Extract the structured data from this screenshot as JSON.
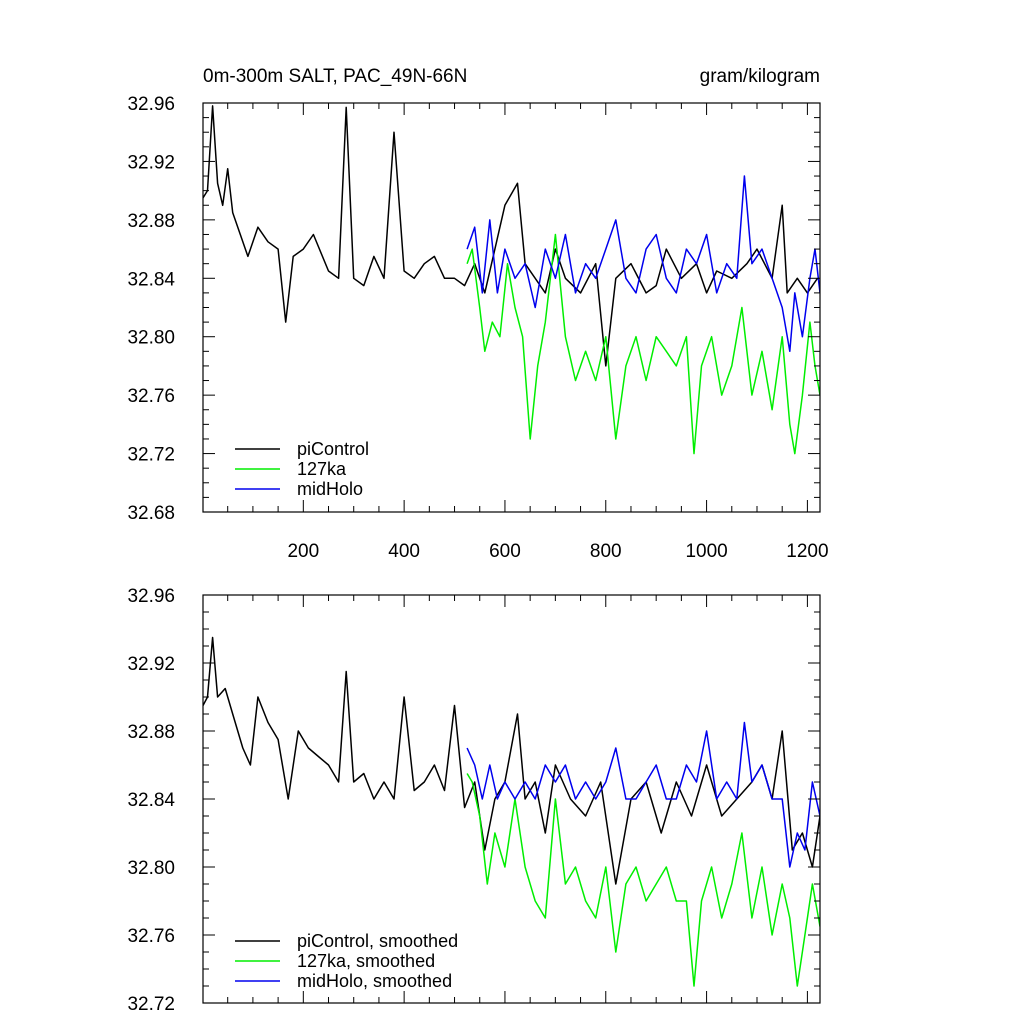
{
  "figure": {
    "title_left": "0m-300m SALT, PAC_49N-66N",
    "title_right": "gram/kilogram"
  },
  "chart_data": [
    {
      "type": "line",
      "title": "0m-300m SALT, PAC_49N-66N",
      "units": "gram/kilogram",
      "xlim": [
        1,
        1225
      ],
      "ylim": [
        32.68,
        32.96
      ],
      "x_ticks": [
        200,
        400,
        600,
        800,
        1000,
        1200
      ],
      "x_tick_labels": [
        "200",
        "400",
        "600",
        "800",
        "1000",
        "1200"
      ],
      "y_ticks": [
        32.68,
        32.72,
        32.76,
        32.8,
        32.84,
        32.88,
        32.92,
        32.96
      ],
      "y_tick_labels": [
        "32.68",
        "32.72",
        "32.76",
        "32.80",
        "32.84",
        "32.88",
        "32.92",
        "32.96"
      ],
      "legend_position": "bottom-left",
      "series": [
        {
          "name": "piControl",
          "color": "#000000",
          "x": [
            1,
            10,
            20,
            30,
            40,
            50,
            60,
            75,
            90,
            110,
            130,
            150,
            165,
            180,
            200,
            220,
            250,
            270,
            285,
            300,
            320,
            340,
            360,
            380,
            400,
            420,
            440,
            460,
            480,
            500,
            520,
            540,
            560,
            580,
            600,
            625,
            640,
            660,
            680,
            700,
            720,
            750,
            780,
            800,
            820,
            850,
            880,
            900,
            920,
            950,
            980,
            1000,
            1020,
            1050,
            1080,
            1100,
            1130,
            1150,
            1160,
            1180,
            1200,
            1220
          ],
          "y": [
            32.895,
            32.9,
            32.958,
            32.905,
            32.89,
            32.915,
            32.885,
            32.87,
            32.855,
            32.875,
            32.865,
            32.86,
            32.81,
            32.855,
            32.86,
            32.87,
            32.845,
            32.84,
            32.957,
            32.84,
            32.835,
            32.855,
            32.84,
            32.94,
            32.845,
            32.84,
            32.85,
            32.855,
            32.84,
            32.84,
            32.835,
            32.85,
            32.83,
            32.86,
            32.89,
            32.905,
            32.85,
            32.84,
            32.83,
            32.86,
            32.84,
            32.83,
            32.85,
            32.78,
            32.84,
            32.85,
            32.83,
            32.835,
            32.86,
            32.84,
            32.85,
            32.83,
            32.845,
            32.84,
            32.85,
            32.86,
            32.84,
            32.89,
            32.83,
            32.84,
            32.83,
            32.84
          ]
        },
        {
          "name": "127ka",
          "color": "#00ee00",
          "x": [
            525,
            535,
            550,
            560,
            575,
            590,
            605,
            620,
            635,
            650,
            665,
            680,
            700,
            720,
            740,
            760,
            780,
            800,
            820,
            840,
            860,
            880,
            900,
            920,
            940,
            960,
            975,
            990,
            1010,
            1030,
            1050,
            1070,
            1090,
            1110,
            1130,
            1150,
            1165,
            1175,
            1190,
            1205,
            1215,
            1225
          ],
          "y": [
            32.85,
            32.86,
            32.82,
            32.79,
            32.81,
            32.8,
            32.85,
            32.82,
            32.8,
            32.73,
            32.78,
            32.81,
            32.87,
            32.8,
            32.77,
            32.79,
            32.77,
            32.8,
            32.73,
            32.78,
            32.8,
            32.77,
            32.8,
            32.79,
            32.78,
            32.8,
            32.72,
            32.78,
            32.8,
            32.76,
            32.78,
            32.82,
            32.76,
            32.79,
            32.75,
            32.8,
            32.74,
            32.72,
            32.76,
            32.81,
            32.78,
            32.76
          ]
        },
        {
          "name": "midHolo",
          "color": "#0000ee",
          "x": [
            525,
            540,
            555,
            570,
            585,
            600,
            620,
            640,
            660,
            680,
            700,
            720,
            740,
            760,
            780,
            800,
            820,
            840,
            860,
            880,
            900,
            920,
            940,
            960,
            980,
            1000,
            1020,
            1040,
            1060,
            1075,
            1090,
            1110,
            1130,
            1150,
            1165,
            1175,
            1190,
            1205,
            1215,
            1225
          ],
          "y": [
            32.86,
            32.875,
            32.83,
            32.88,
            32.83,
            32.86,
            32.84,
            32.85,
            32.82,
            32.86,
            32.84,
            32.87,
            32.83,
            32.85,
            32.84,
            32.86,
            32.88,
            32.84,
            32.83,
            32.86,
            32.87,
            32.84,
            32.83,
            32.86,
            32.85,
            32.87,
            32.83,
            32.85,
            32.84,
            32.91,
            32.85,
            32.86,
            32.84,
            32.82,
            32.79,
            32.83,
            32.8,
            32.84,
            32.86,
            32.83
          ]
        }
      ]
    },
    {
      "type": "line",
      "xlim": [
        1,
        1225
      ],
      "ylim": [
        32.72,
        32.96
      ],
      "x_ticks": [
        200,
        400,
        600,
        800,
        1000,
        1200
      ],
      "y_ticks": [
        32.72,
        32.76,
        32.8,
        32.84,
        32.88,
        32.92,
        32.96
      ],
      "y_tick_labels": [
        "32.72",
        "32.76",
        "32.80",
        "32.84",
        "32.88",
        "32.92",
        "32.96"
      ],
      "legend_position": "bottom-left",
      "series": [
        {
          "name": "piControl, smoothed",
          "color": "#000000",
          "x": [
            1,
            10,
            20,
            30,
            45,
            60,
            80,
            95,
            110,
            130,
            150,
            170,
            190,
            210,
            230,
            250,
            270,
            285,
            300,
            320,
            340,
            360,
            380,
            400,
            420,
            440,
            460,
            480,
            500,
            520,
            540,
            560,
            580,
            600,
            625,
            640,
            660,
            680,
            700,
            730,
            760,
            790,
            820,
            850,
            880,
            910,
            940,
            970,
            1000,
            1030,
            1060,
            1090,
            1110,
            1130,
            1150,
            1170,
            1190,
            1210,
            1225
          ],
          "y": [
            32.895,
            32.9,
            32.935,
            32.9,
            32.905,
            32.89,
            32.87,
            32.86,
            32.9,
            32.885,
            32.875,
            32.84,
            32.88,
            32.87,
            32.865,
            32.86,
            32.85,
            32.915,
            32.85,
            32.855,
            32.84,
            32.85,
            32.84,
            32.9,
            32.845,
            32.85,
            32.86,
            32.845,
            32.895,
            32.835,
            32.85,
            32.81,
            32.84,
            32.85,
            32.89,
            32.84,
            32.85,
            32.82,
            32.86,
            32.84,
            32.83,
            32.85,
            32.79,
            32.84,
            32.85,
            32.82,
            32.85,
            32.83,
            32.86,
            32.83,
            32.84,
            32.85,
            32.86,
            32.84,
            32.88,
            32.81,
            32.82,
            32.8,
            32.83
          ]
        },
        {
          "name": "127ka, smoothed",
          "color": "#00ee00",
          "x": [
            525,
            535,
            550,
            565,
            580,
            600,
            620,
            640,
            660,
            680,
            700,
            720,
            740,
            760,
            780,
            800,
            820,
            840,
            860,
            880,
            900,
            920,
            940,
            960,
            975,
            990,
            1010,
            1030,
            1050,
            1070,
            1090,
            1110,
            1130,
            1150,
            1165,
            1180,
            1195,
            1210,
            1225
          ],
          "y": [
            32.855,
            32.85,
            32.83,
            32.79,
            32.82,
            32.8,
            32.84,
            32.8,
            32.78,
            32.77,
            32.84,
            32.79,
            32.8,
            32.78,
            32.77,
            32.8,
            32.75,
            32.79,
            32.8,
            32.78,
            32.79,
            32.8,
            32.78,
            32.78,
            32.73,
            32.78,
            32.8,
            32.77,
            32.79,
            32.82,
            32.77,
            32.8,
            32.76,
            32.79,
            32.77,
            32.73,
            32.76,
            32.79,
            32.765
          ]
        },
        {
          "name": "midHolo, smoothed",
          "color": "#0000ee",
          "x": [
            525,
            540,
            555,
            570,
            585,
            600,
            620,
            640,
            660,
            680,
            700,
            720,
            740,
            760,
            780,
            800,
            820,
            840,
            860,
            880,
            900,
            920,
            940,
            960,
            980,
            1000,
            1020,
            1040,
            1060,
            1075,
            1090,
            1110,
            1130,
            1150,
            1165,
            1180,
            1195,
            1210,
            1225
          ],
          "y": [
            32.87,
            32.86,
            32.84,
            32.86,
            32.84,
            32.85,
            32.84,
            32.85,
            32.84,
            32.86,
            32.85,
            32.86,
            32.84,
            32.85,
            32.84,
            32.85,
            32.87,
            32.84,
            32.84,
            32.85,
            32.86,
            32.84,
            32.84,
            32.86,
            32.85,
            32.88,
            32.84,
            32.85,
            32.84,
            32.885,
            32.85,
            32.86,
            32.84,
            32.84,
            32.8,
            32.82,
            32.81,
            32.85,
            32.83
          ]
        }
      ]
    }
  ]
}
